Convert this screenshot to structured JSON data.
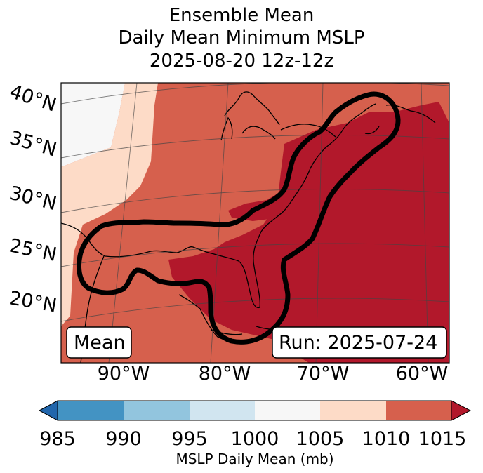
{
  "title": {
    "line1": "Ensemble Mean",
    "line2": "Daily Mean Minimum MSLP",
    "line3": "2025-08-20 12z-12z"
  },
  "map": {
    "lat_labels": [
      "40°N",
      "35°N",
      "30°N",
      "25°N",
      "20°N"
    ],
    "lon_labels": [
      "90°W",
      "80°W",
      "70°W",
      "60°W"
    ],
    "mean_label": "Mean",
    "run_label": "Run: 2025-07-24",
    "colors": {
      "c985": "#2166ac",
      "c985_990": "#4393c3",
      "c990_995": "#92c5de",
      "c995_1000": "#d1e5f0",
      "c1000_1005": "#f7f7f7",
      "c1005_1010": "#fddbc7",
      "c1010_1015": "#d6604d",
      "c1015": "#b2182b",
      "contour": "#000000",
      "grid": "#444444"
    }
  },
  "colorbar": {
    "ticks": [
      "985",
      "990",
      "995",
      "1000",
      "1005",
      "1010",
      "1015"
    ],
    "label": "MSLP Daily Mean (mb)"
  }
}
